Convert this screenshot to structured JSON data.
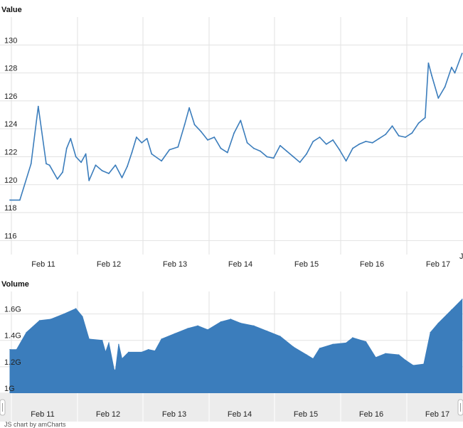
{
  "chart_data": [
    {
      "type": "line",
      "title": "Value",
      "ylim": [
        115,
        132
      ],
      "y_ticks": [
        116,
        118,
        120,
        122,
        124,
        126,
        128,
        130
      ],
      "y_tick_labels": [
        "116",
        "118",
        "120",
        "122",
        "124",
        "126",
        "128",
        "130"
      ],
      "x_tick_labels": [
        "Feb 11",
        "Feb 12",
        "Feb 13",
        "Feb 14",
        "Feb 15",
        "Feb 16",
        "Feb 17"
      ],
      "x_edge_label": "J",
      "series": [
        {
          "color": "#3b7dbc",
          "points": [
            [
              0,
              118.9
            ],
            [
              0.15,
              118.9
            ],
            [
              0.32,
              121.5
            ],
            [
              0.43,
              125.6
            ],
            [
              0.55,
              121.5
            ],
            [
              0.6,
              121.4
            ],
            [
              0.72,
              120.4
            ],
            [
              0.8,
              120.9
            ],
            [
              0.86,
              122.6
            ],
            [
              0.92,
              123.3
            ],
            [
              1.0,
              122.0
            ],
            [
              1.08,
              121.6
            ],
            [
              1.15,
              122.2
            ],
            [
              1.2,
              120.3
            ],
            [
              1.3,
              121.4
            ],
            [
              1.4,
              121.0
            ],
            [
              1.5,
              120.8
            ],
            [
              1.6,
              121.4
            ],
            [
              1.7,
              120.5
            ],
            [
              1.78,
              121.3
            ],
            [
              1.85,
              122.3
            ],
            [
              1.92,
              123.4
            ],
            [
              2.0,
              123.0
            ],
            [
              2.08,
              123.3
            ],
            [
              2.15,
              122.2
            ],
            [
              2.3,
              121.7
            ],
            [
              2.42,
              122.5
            ],
            [
              2.55,
              122.7
            ],
            [
              2.65,
              124.3
            ],
            [
              2.72,
              125.5
            ],
            [
              2.8,
              124.3
            ],
            [
              2.9,
              123.8
            ],
            [
              3.0,
              123.2
            ],
            [
              3.1,
              123.4
            ],
            [
              3.2,
              122.6
            ],
            [
              3.3,
              122.3
            ],
            [
              3.4,
              123.7
            ],
            [
              3.5,
              124.6
            ],
            [
              3.6,
              123.0
            ],
            [
              3.7,
              122.6
            ],
            [
              3.8,
              122.4
            ],
            [
              3.9,
              122.0
            ],
            [
              4.0,
              121.9
            ],
            [
              4.1,
              122.8
            ],
            [
              4.2,
              122.4
            ],
            [
              4.3,
              122.0
            ],
            [
              4.4,
              121.6
            ],
            [
              4.5,
              122.2
            ],
            [
              4.6,
              123.1
            ],
            [
              4.7,
              123.4
            ],
            [
              4.8,
              122.9
            ],
            [
              4.9,
              123.2
            ],
            [
              5.0,
              122.5
            ],
            [
              5.1,
              121.7
            ],
            [
              5.2,
              122.6
            ],
            [
              5.3,
              122.9
            ],
            [
              5.4,
              123.1
            ],
            [
              5.5,
              123.0
            ],
            [
              5.6,
              123.3
            ],
            [
              5.7,
              123.6
            ],
            [
              5.8,
              124.2
            ],
            [
              5.9,
              123.5
            ],
            [
              6.0,
              123.4
            ],
            [
              6.1,
              123.7
            ],
            [
              6.2,
              124.4
            ],
            [
              6.3,
              124.8
            ],
            [
              6.35,
              128.7
            ],
            [
              6.4,
              127.8
            ],
            [
              6.5,
              126.2
            ],
            [
              6.6,
              127.0
            ],
            [
              6.7,
              128.4
            ],
            [
              6.75,
              128.0
            ],
            [
              6.86,
              129.4
            ]
          ]
        }
      ]
    },
    {
      "type": "area",
      "title": "Volume",
      "ylim": [
        1.0,
        1.77
      ],
      "y_ticks": [
        1.0,
        1.2,
        1.4,
        1.6
      ],
      "y_tick_labels": [
        "1G",
        "1.2G",
        "1.4G",
        "1.6G"
      ],
      "x_tick_labels": [
        "Feb 11",
        "Feb 12",
        "Feb 13",
        "Feb 14",
        "Feb 15",
        "Feb 16",
        "Feb 17"
      ],
      "series": [
        {
          "color": "#3b7dbc",
          "points": [
            [
              0,
              1.33
            ],
            [
              0.1,
              1.33
            ],
            [
              0.25,
              1.46
            ],
            [
              0.45,
              1.55
            ],
            [
              0.62,
              1.56
            ],
            [
              0.82,
              1.6
            ],
            [
              1.0,
              1.64
            ],
            [
              1.1,
              1.58
            ],
            [
              1.2,
              1.41
            ],
            [
              1.4,
              1.4
            ],
            [
              1.45,
              1.31
            ],
            [
              1.5,
              1.38
            ],
            [
              1.58,
              1.18
            ],
            [
              1.6,
              1.17
            ],
            [
              1.65,
              1.37
            ],
            [
              1.7,
              1.26
            ],
            [
              1.8,
              1.31
            ],
            [
              2.0,
              1.31
            ],
            [
              2.1,
              1.33
            ],
            [
              2.2,
              1.32
            ],
            [
              2.3,
              1.41
            ],
            [
              2.5,
              1.45
            ],
            [
              2.7,
              1.49
            ],
            [
              2.85,
              1.51
            ],
            [
              3.0,
              1.48
            ],
            [
              3.2,
              1.54
            ],
            [
              3.35,
              1.56
            ],
            [
              3.5,
              1.53
            ],
            [
              3.7,
              1.51
            ],
            [
              3.9,
              1.47
            ],
            [
              4.1,
              1.43
            ],
            [
              4.3,
              1.35
            ],
            [
              4.5,
              1.29
            ],
            [
              4.6,
              1.26
            ],
            [
              4.7,
              1.34
            ],
            [
              4.9,
              1.37
            ],
            [
              5.1,
              1.38
            ],
            [
              5.2,
              1.42
            ],
            [
              5.4,
              1.39
            ],
            [
              5.55,
              1.27
            ],
            [
              5.7,
              1.3
            ],
            [
              5.9,
              1.29
            ],
            [
              6.0,
              1.25
            ],
            [
              6.12,
              1.21
            ],
            [
              6.28,
              1.22
            ],
            [
              6.38,
              1.46
            ],
            [
              6.5,
              1.53
            ],
            [
              6.7,
              1.63
            ],
            [
              6.86,
              1.71
            ]
          ]
        }
      ]
    }
  ],
  "footer_text": "JS chart by amCharts"
}
